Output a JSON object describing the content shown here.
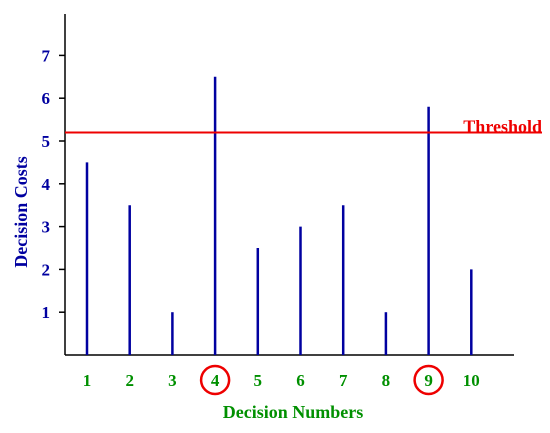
{
  "chart_data": {
    "type": "bar",
    "categories": [
      "1",
      "2",
      "3",
      "4",
      "5",
      "6",
      "7",
      "8",
      "9",
      "10"
    ],
    "values": [
      4.5,
      3.5,
      1,
      6.5,
      2.5,
      3,
      3.5,
      1,
      5.8,
      2
    ],
    "xlabel": "Decision Numbers",
    "ylabel": "Decision Costs",
    "yticks": [
      "1",
      "2",
      "3",
      "4",
      "5",
      "6",
      "7"
    ],
    "ylim": [
      0,
      8
    ],
    "grid": false,
    "threshold": {
      "value": 5.2,
      "label": "Threshold"
    },
    "circled_categories": [
      "4",
      "9"
    ],
    "colors": {
      "bars": "#0000a0",
      "y_ticks": "#0000a0",
      "y_label": "#0000a0",
      "x_ticks": "#009000",
      "x_label": "#009000",
      "threshold": "#ee0000",
      "circles": "#ee0000",
      "axes": "#000000"
    }
  }
}
